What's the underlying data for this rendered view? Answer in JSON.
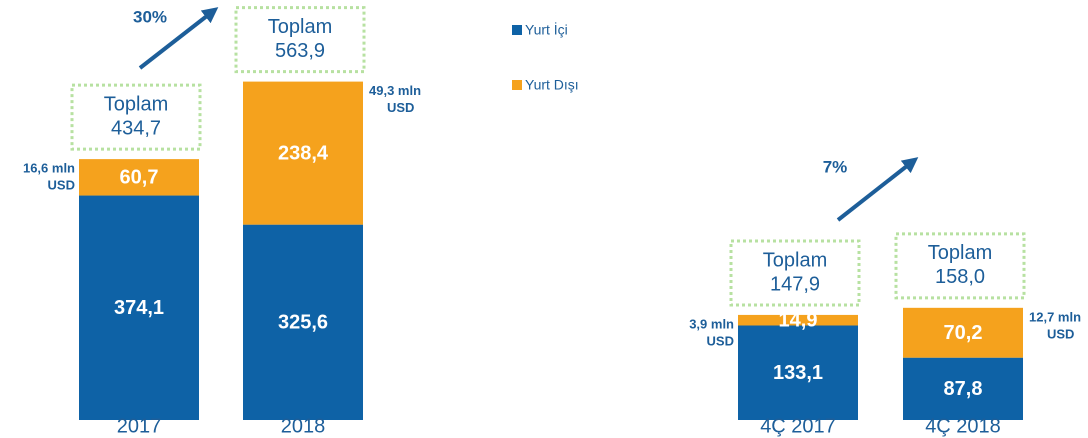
{
  "chart_data": [
    {
      "type": "stacked_bar",
      "categories": [
        "2017",
        "2018"
      ],
      "series": [
        {
          "name": "Yurt İçi",
          "color": "#0e62a6",
          "values": [
            374.1,
            325.6
          ],
          "value_labels": [
            "374,1",
            "325,6"
          ]
        },
        {
          "name": "Yurt Dışı",
          "color": "#f5a21d",
          "values": [
            60.7,
            238.4
          ],
          "value_labels": [
            "60,7",
            "238,4"
          ]
        }
      ],
      "total_label": "Toplam",
      "totals": [
        434.7,
        563.9
      ],
      "total_labels": [
        "434,7",
        "563,9"
      ],
      "notes": [
        [
          "16,6 mln",
          "USD"
        ],
        [
          "49,3 mln",
          "USD"
        ]
      ],
      "note_side": [
        "left",
        "right"
      ],
      "growth": "30%",
      "ylim": [
        0,
        600
      ]
    },
    {
      "type": "stacked_bar",
      "categories": [
        "4Ç 2017",
        "4Ç 2018"
      ],
      "series": [
        {
          "color": "#0e62a6",
          "values": [
            133.1,
            87.8
          ],
          "value_labels": [
            "133,1",
            "87,8"
          ]
        },
        {
          "color": "#f5a21d",
          "values": [
            14.9,
            70.2
          ],
          "value_labels": [
            "14,9",
            "70,2"
          ]
        }
      ],
      "total_label": "Toplam",
      "totals": [
        147.9,
        158.0
      ],
      "total_labels": [
        "147,9",
        "158,0"
      ],
      "notes": [
        [
          "3,9 mln",
          "USD"
        ],
        [
          "12,7 mln",
          "USD"
        ]
      ],
      "note_side": [
        "left",
        "right"
      ],
      "growth": "7%",
      "ylim": [
        0,
        200
      ]
    }
  ]
}
